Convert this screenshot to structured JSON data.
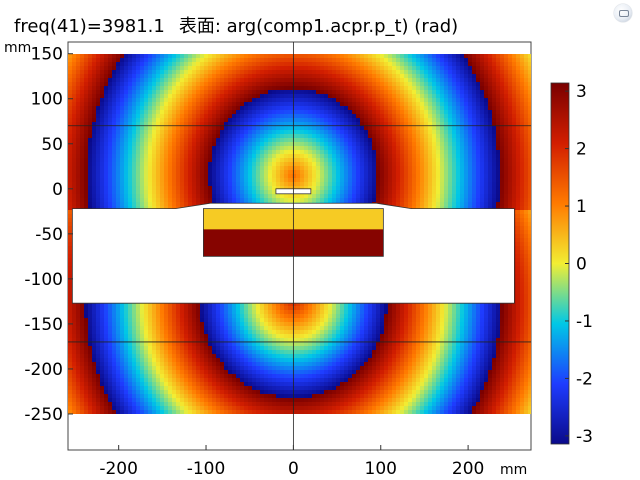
{
  "title": {
    "expression": "freq(41)=3981.1",
    "quantity": "表面: arg(comp1.acpr.p_t) (rad)"
  },
  "toolbar": {
    "icon": "zoom-extents-icon"
  },
  "chart_data": {
    "type": "heatmap",
    "xunit": "mm",
    "yunit": "mm",
    "xlim": [
      -258,
      272
    ],
    "ylim": [
      -290,
      163
    ],
    "xticks": [
      -200,
      -100,
      0,
      100,
      200
    ],
    "yticks": [
      150,
      100,
      50,
      0,
      -50,
      -100,
      -150,
      -200,
      -250
    ],
    "colorbar": {
      "min": -3.14159,
      "max": 3.14159,
      "ticks": [
        3,
        2,
        1,
        0,
        -1,
        -2,
        -3
      ],
      "colormap": "rainbow",
      "colors": [
        "#0a0a8a",
        "#1e3cff",
        "#00c8e6",
        "#f2ee33",
        "#ff7a00",
        "#d21e00",
        "#7a0000"
      ]
    },
    "field_domain": {
      "x": [
        -258,
        272
      ],
      "y": [
        -250,
        150
      ]
    },
    "axis_lines": {
      "x": [
        -258,
        0
      ],
      "y": [
        70,
        -170
      ]
    },
    "white_regions": [
      {
        "shape": "slab",
        "x": [
          -253,
          253
        ],
        "y": [
          -127,
          -22
        ]
      },
      {
        "shape": "cavity-top",
        "x": [
          -103,
          103
        ],
        "y": [
          -22,
          2
        ]
      }
    ],
    "inner_box": {
      "x": [
        -103,
        103
      ],
      "y": [
        -75,
        -22
      ],
      "bottom_band": {
        "y": [
          -75,
          -45
        ],
        "phase": 3.0
      }
    },
    "wave_sources": [
      {
        "name": "upper",
        "center": [
          0,
          15
        ],
        "k": 0.045
      },
      {
        "name": "lower",
        "center": [
          0,
          -125
        ],
        "k": 0.048
      }
    ]
  }
}
